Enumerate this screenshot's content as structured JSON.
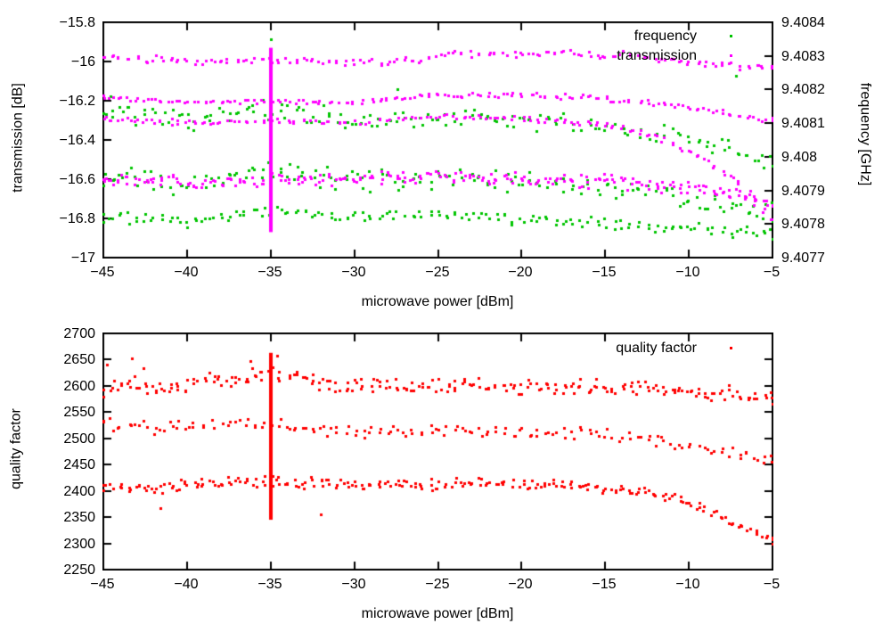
{
  "chart_data": {
    "type": "scatter",
    "panels": [
      {
        "name": "top-panel",
        "x_axis": {
          "label": "microwave power [dBm]",
          "min": -45,
          "max": -5,
          "ticks": [
            {
              "v": -45,
              "t": "−45"
            },
            {
              "v": -40,
              "t": "−40"
            },
            {
              "v": -35,
              "t": "−35"
            },
            {
              "v": -30,
              "t": "−30"
            },
            {
              "v": -25,
              "t": "−25"
            },
            {
              "v": -20,
              "t": "−20"
            },
            {
              "v": -15,
              "t": "−15"
            },
            {
              "v": -10,
              "t": "−10"
            },
            {
              "v": -5,
              "t": "−5"
            }
          ]
        },
        "y_left": {
          "label": "transmission [dB]",
          "min": -17,
          "max": -15.8,
          "ticks": [
            {
              "v": -15.8,
              "t": "−15.8"
            },
            {
              "v": -16,
              "t": "−16"
            },
            {
              "v": -16.2,
              "t": "−16.2"
            },
            {
              "v": -16.4,
              "t": "−16.4"
            },
            {
              "v": -16.6,
              "t": "−16.6"
            },
            {
              "v": -16.8,
              "t": "−16.8"
            },
            {
              "v": -17,
              "t": "−17"
            }
          ]
        },
        "y_right": {
          "label": "frequency [GHz]",
          "min": 9.4077,
          "max": 9.4084,
          "ticks": [
            {
              "v": 9.4084,
              "t": "9.4084"
            },
            {
              "v": 9.4083,
              "t": "9.4083"
            },
            {
              "v": 9.4082,
              "t": "9.4082"
            },
            {
              "v": 9.4081,
              "t": "9.4081"
            },
            {
              "v": 9.408,
              "t": "9.408"
            },
            {
              "v": 9.4079,
              "t": "9.4079"
            },
            {
              "v": 9.4078,
              "t": "9.4078"
            },
            {
              "v": 9.4077,
              "t": "9.4077"
            }
          ]
        },
        "legend": [
          {
            "label": "frequency",
            "series": 0
          },
          {
            "label": "transmission",
            "series": 1
          }
        ],
        "series": [
          {
            "name": "frequency",
            "color": "#00c400",
            "axis": "right",
            "x_start": -45,
            "x_end": -5,
            "x_step": 0.5,
            "bands": [
              {
                "anchors": [
                  [
                    -45,
                    9.40813
                  ],
                  [
                    -40,
                    9.40811
                  ],
                  [
                    -35,
                    9.40814
                  ],
                  [
                    -30,
                    9.40811
                  ],
                  [
                    -25,
                    9.40812
                  ],
                  [
                    -20,
                    9.40811
                  ],
                  [
                    -15,
                    9.40809
                  ],
                  [
                    -10,
                    9.40806
                  ],
                  [
                    -5,
                    9.40799
                  ]
                ],
                "spread": 3.5e-05,
                "per_col": 2
              },
              {
                "anchors": [
                  [
                    -45,
                    9.40794
                  ],
                  [
                    -40,
                    9.40792
                  ],
                  [
                    -35,
                    9.40796
                  ],
                  [
                    -30,
                    9.40793
                  ],
                  [
                    -25,
                    9.40794
                  ],
                  [
                    -20,
                    9.40793
                  ],
                  [
                    -15,
                    9.40791
                  ],
                  [
                    -10,
                    9.40788
                  ],
                  [
                    -5,
                    9.40783
                  ]
                ],
                "spread": 4e-05,
                "per_col": 2
              },
              {
                "anchors": [
                  [
                    -45,
                    9.40782
                  ],
                  [
                    -40,
                    9.40781
                  ],
                  [
                    -35,
                    9.40784
                  ],
                  [
                    -30,
                    9.40782
                  ],
                  [
                    -25,
                    9.40783
                  ],
                  [
                    -20,
                    9.40781
                  ],
                  [
                    -15,
                    9.4078
                  ],
                  [
                    -10,
                    9.40779
                  ],
                  [
                    -5,
                    9.40777
                  ]
                ],
                "spread": 2.2e-05,
                "per_col": 2
              }
            ],
            "outliers": [
              [
                -35,
                9.40835
              ],
              [
                -7.2,
                9.40824
              ],
              [
                -27.4,
                9.4082
              ],
              [
                -44.6,
                9.40818
              ]
            ]
          },
          {
            "name": "transmission",
            "color": "#ff00ff",
            "axis": "left",
            "x_start": -45,
            "x_end": -5,
            "x_step": 0.5,
            "vline": {
              "x": -35,
              "from": -15.93,
              "to": -16.87
            },
            "bands": [
              {
                "anchors": [
                  [
                    -45,
                    -15.97
                  ],
                  [
                    -40,
                    -16.0
                  ],
                  [
                    -35,
                    -15.99
                  ],
                  [
                    -30,
                    -16.0
                  ],
                  [
                    -26,
                    -15.99
                  ],
                  [
                    -24,
                    -15.96
                  ],
                  [
                    -18,
                    -15.955
                  ],
                  [
                    -14,
                    -15.965
                  ],
                  [
                    -10,
                    -16.0
                  ],
                  [
                    -7,
                    -16.02
                  ],
                  [
                    -5,
                    -16.03
                  ]
                ],
                "spread": 0.022,
                "per_col": 2
              },
              {
                "anchors": [
                  [
                    -45,
                    -16.18
                  ],
                  [
                    -40,
                    -16.21
                  ],
                  [
                    -35,
                    -16.2
                  ],
                  [
                    -30,
                    -16.21
                  ],
                  [
                    -25,
                    -16.17
                  ],
                  [
                    -20,
                    -16.17
                  ],
                  [
                    -15,
                    -16.19
                  ],
                  [
                    -11,
                    -16.22
                  ],
                  [
                    -8,
                    -16.26
                  ],
                  [
                    -5,
                    -16.3
                  ]
                ],
                "spread": 0.016,
                "per_col": 2
              },
              {
                "anchors": [
                  [
                    -45,
                    -16.29
                  ],
                  [
                    -40,
                    -16.31
                  ],
                  [
                    -35,
                    -16.3
                  ],
                  [
                    -30,
                    -16.31
                  ],
                  [
                    -25,
                    -16.28
                  ],
                  [
                    -20,
                    -16.29
                  ],
                  [
                    -15,
                    -16.32
                  ],
                  [
                    -12,
                    -16.38
                  ],
                  [
                    -9,
                    -16.5
                  ],
                  [
                    -7,
                    -16.62
                  ],
                  [
                    -5,
                    -16.8
                  ]
                ],
                "spread": 0.018,
                "per_col": 2
              },
              {
                "anchors": [
                  [
                    -45,
                    -16.6
                  ],
                  [
                    -40,
                    -16.62
                  ],
                  [
                    -35,
                    -16.6
                  ],
                  [
                    -30,
                    -16.6
                  ],
                  [
                    -25,
                    -16.58
                  ],
                  [
                    -20,
                    -16.6
                  ],
                  [
                    -15,
                    -16.61
                  ],
                  [
                    -10,
                    -16.64
                  ],
                  [
                    -7,
                    -16.68
                  ],
                  [
                    -5,
                    -16.73
                  ]
                ],
                "spread": 0.04,
                "per_col": 3
              }
            ],
            "outliers": []
          }
        ]
      },
      {
        "name": "bottom-panel",
        "x_axis": {
          "label": "microwave power [dBm]",
          "min": -45,
          "max": -5,
          "ticks": [
            {
              "v": -45,
              "t": "−45"
            },
            {
              "v": -40,
              "t": "−40"
            },
            {
              "v": -35,
              "t": "−35"
            },
            {
              "v": -30,
              "t": "−30"
            },
            {
              "v": -25,
              "t": "−25"
            },
            {
              "v": -20,
              "t": "−20"
            },
            {
              "v": -15,
              "t": "−15"
            },
            {
              "v": -10,
              "t": "−10"
            },
            {
              "v": -5,
              "t": "−5"
            }
          ]
        },
        "y_left": {
          "label": "quality factor",
          "min": 2250,
          "max": 2700,
          "ticks": [
            {
              "v": 2700,
              "t": "2700"
            },
            {
              "v": 2650,
              "t": "2650"
            },
            {
              "v": 2600,
              "t": "2600"
            },
            {
              "v": 2550,
              "t": "2550"
            },
            {
              "v": 2500,
              "t": "2500"
            },
            {
              "v": 2450,
              "t": "2450"
            },
            {
              "v": 2400,
              "t": "2400"
            },
            {
              "v": 2350,
              "t": "2350"
            },
            {
              "v": 2300,
              "t": "2300"
            },
            {
              "v": 2250,
              "t": "2250"
            }
          ]
        },
        "y_right": null,
        "legend": [
          {
            "label": "quality factor",
            "series": 0
          }
        ],
        "series": [
          {
            "name": "quality factor",
            "color": "#ff0000",
            "axis": "left",
            "x_start": -45,
            "x_end": -5,
            "x_step": 0.5,
            "vline": {
              "x": -35,
              "from": 2345,
              "to": 2663
            },
            "bands": [
              {
                "anchors": [
                  [
                    -45,
                    2597
                  ],
                  [
                    -43,
                    2606
                  ],
                  [
                    -41,
                    2593
                  ],
                  [
                    -39,
                    2610
                  ],
                  [
                    -37,
                    2616
                  ],
                  [
                    -35,
                    2622
                  ],
                  [
                    -33,
                    2610
                  ],
                  [
                    -31,
                    2601
                  ],
                  [
                    -29,
                    2604
                  ],
                  [
                    -27,
                    2599
                  ],
                  [
                    -25,
                    2597
                  ],
                  [
                    -23,
                    2601
                  ],
                  [
                    -21,
                    2595
                  ],
                  [
                    -19,
                    2599
                  ],
                  [
                    -17,
                    2597
                  ],
                  [
                    -15,
                    2600
                  ],
                  [
                    -13,
                    2597
                  ],
                  [
                    -11,
                    2594
                  ],
                  [
                    -9,
                    2589
                  ],
                  [
                    -7,
                    2584
                  ],
                  [
                    -5,
                    2578
                  ]
                ],
                "spread": 18,
                "per_col": 3
              },
              {
                "anchors": [
                  [
                    -45,
                    2526
                  ],
                  [
                    -42,
                    2521
                  ],
                  [
                    -39,
                    2524
                  ],
                  [
                    -36,
                    2532
                  ],
                  [
                    -33,
                    2520
                  ],
                  [
                    -30,
                    2514
                  ],
                  [
                    -27,
                    2513
                  ],
                  [
                    -24,
                    2516
                  ],
                  [
                    -21,
                    2514
                  ],
                  [
                    -18,
                    2512
                  ],
                  [
                    -15,
                    2508
                  ],
                  [
                    -12,
                    2498
                  ],
                  [
                    -9,
                    2484
                  ],
                  [
                    -7,
                    2471
                  ],
                  [
                    -5,
                    2461
                  ]
                ],
                "spread": 14,
                "per_col": 2
              },
              {
                "anchors": [
                  [
                    -45,
                    2411
                  ],
                  [
                    -42,
                    2406
                  ],
                  [
                    -39,
                    2413
                  ],
                  [
                    -36,
                    2419
                  ],
                  [
                    -33,
                    2416
                  ],
                  [
                    -30,
                    2414
                  ],
                  [
                    -27,
                    2412
                  ],
                  [
                    -24,
                    2414
                  ],
                  [
                    -21,
                    2413
                  ],
                  [
                    -18,
                    2412
                  ],
                  [
                    -15,
                    2407
                  ],
                  [
                    -13,
                    2399
                  ],
                  [
                    -11,
                    2388
                  ],
                  [
                    -9,
                    2362
                  ],
                  [
                    -7,
                    2333
                  ],
                  [
                    -5,
                    2303
                  ]
                ],
                "spread": 13,
                "per_col": 3
              }
            ],
            "outliers": [
              [
                -43.3,
                2652
              ],
              [
                -42.6,
                2634
              ],
              [
                -36.2,
                2648
              ],
              [
                -34.6,
                2658
              ],
              [
                -32,
                2355
              ],
              [
                -41.6,
                2368
              ],
              [
                -44.8,
                2641
              ]
            ]
          }
        ]
      }
    ]
  },
  "colors": {
    "frequency": "#00c400",
    "transmission": "#ff00ff",
    "quality_factor": "#ff0000",
    "axis": "#000000",
    "background": "#ffffff"
  }
}
